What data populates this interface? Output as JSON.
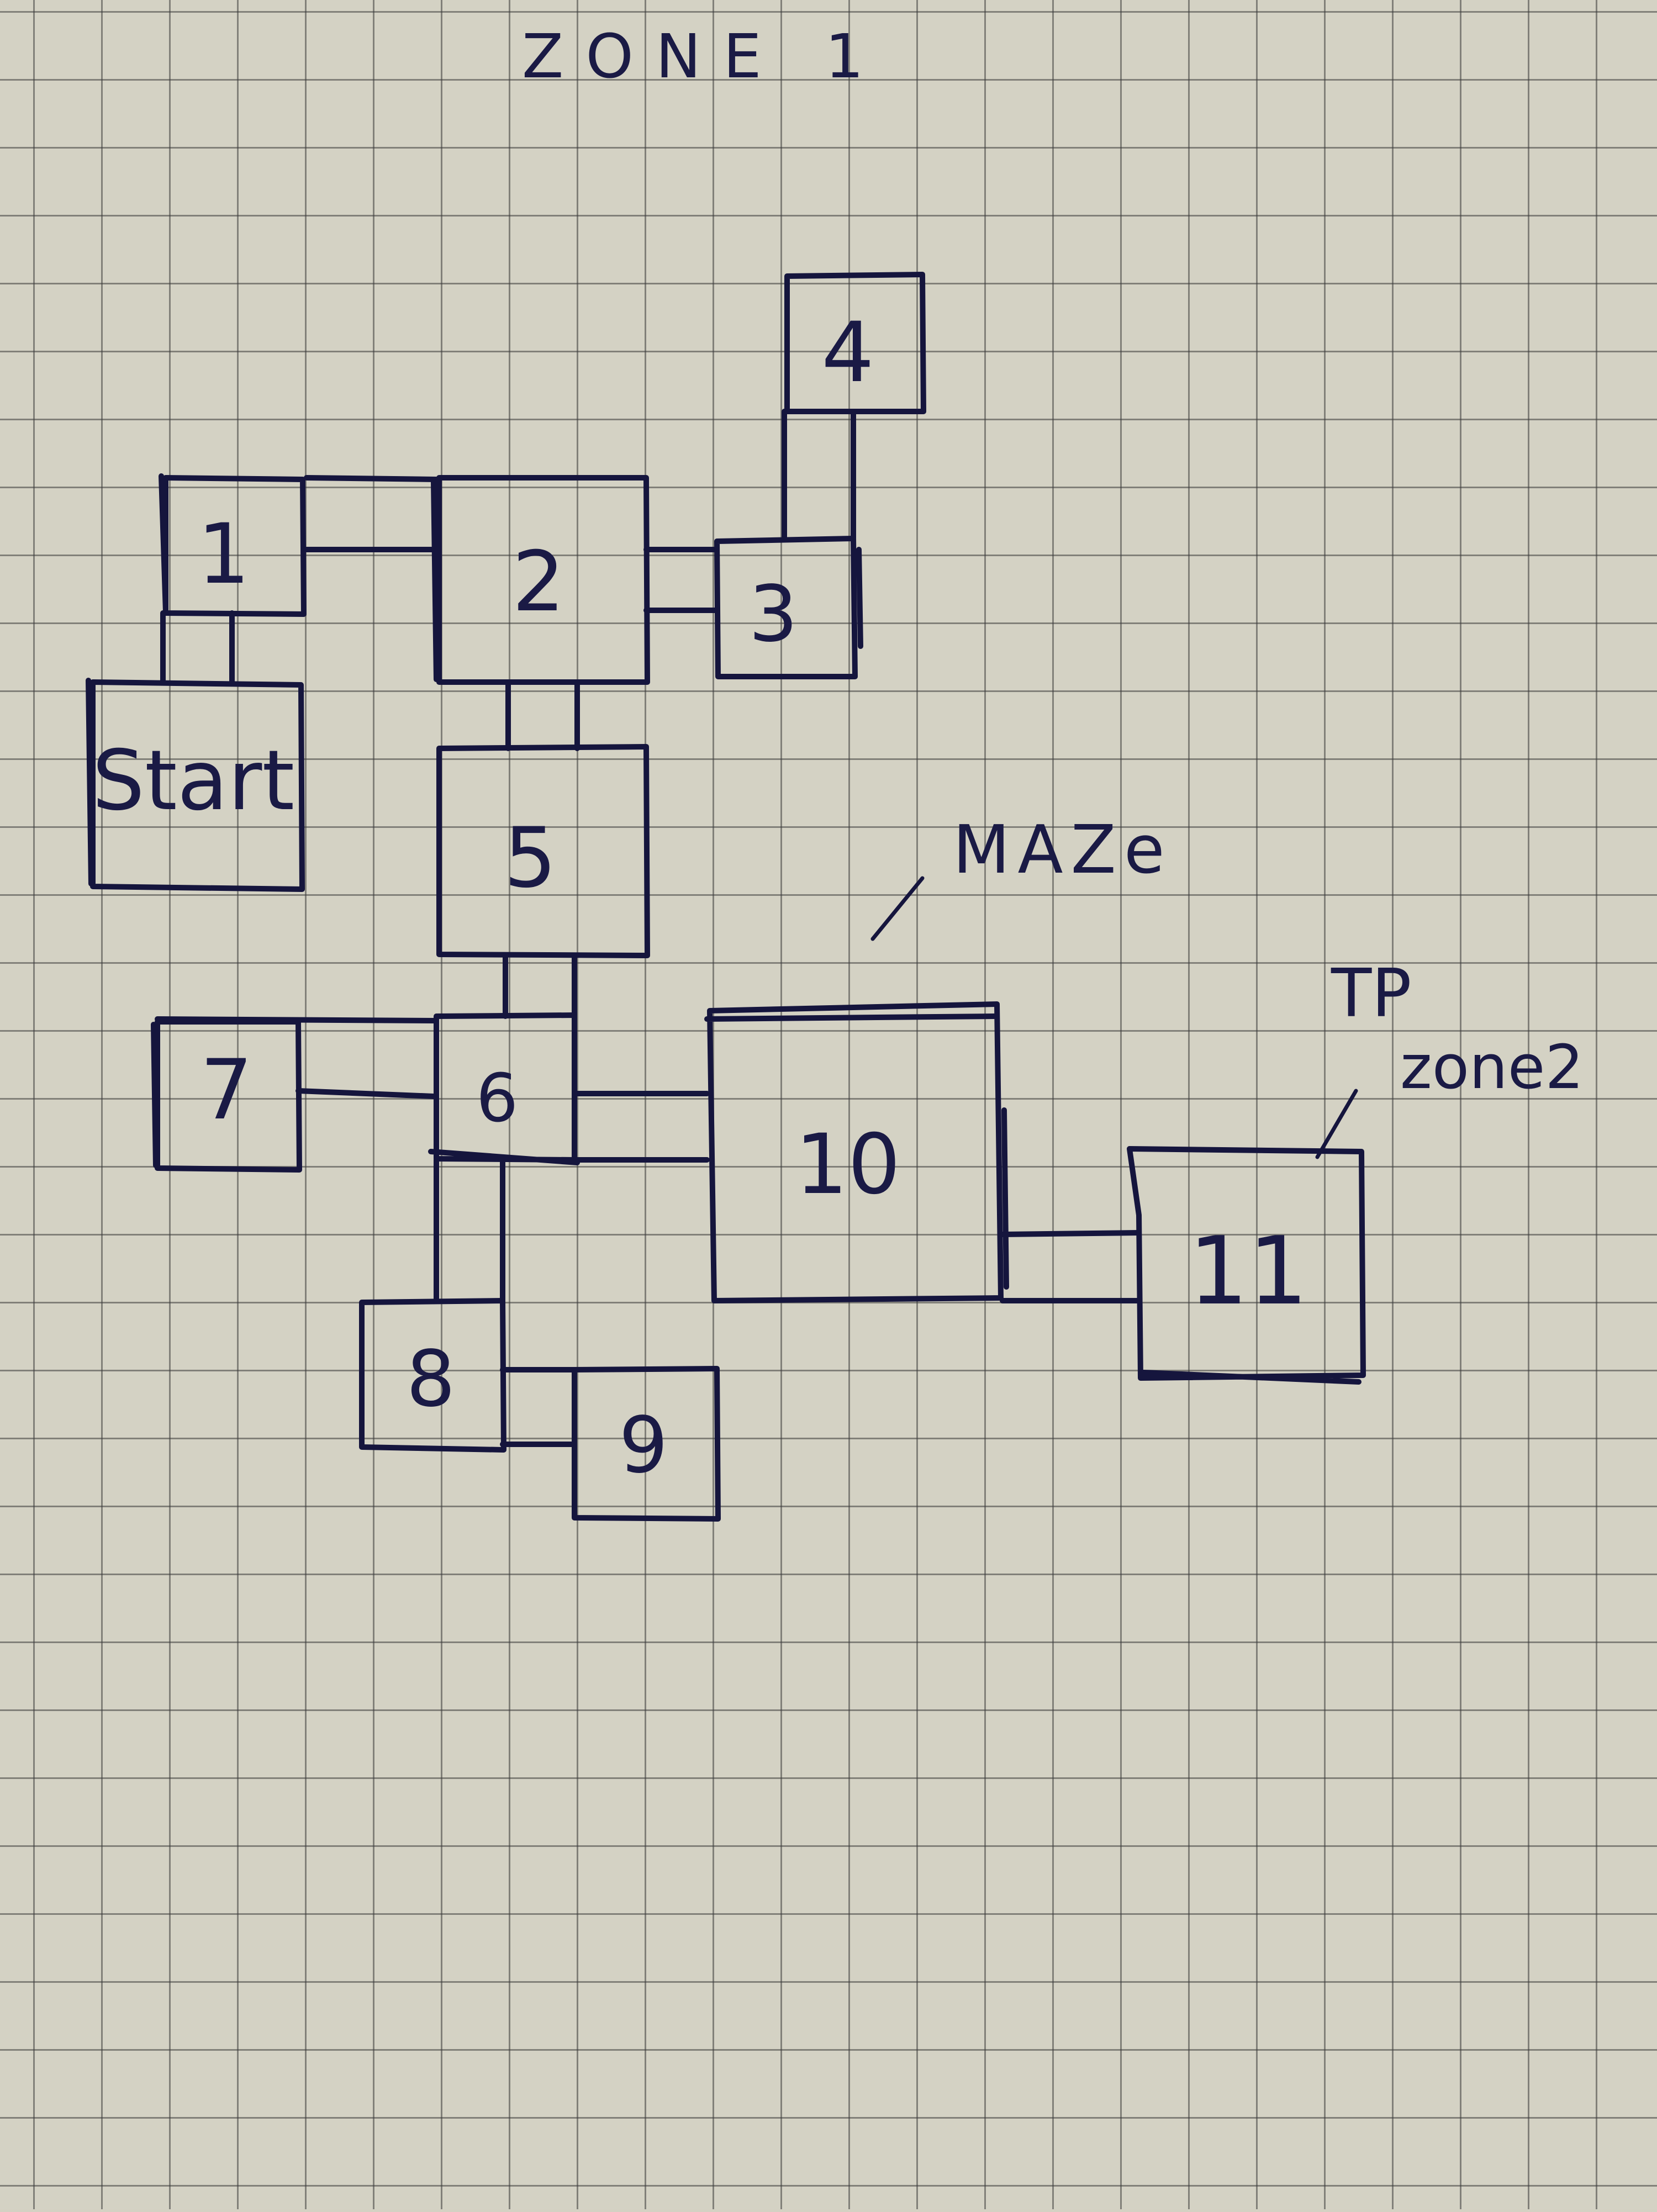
{
  "title": "ZONE 1",
  "rooms": {
    "start": "Start",
    "r1": "1",
    "r2": "2",
    "r3": "3",
    "r4": "4",
    "r5": "5",
    "r6": "6",
    "r7": "7",
    "r8": "8",
    "r9": "9",
    "r10": "10",
    "r11": "11"
  },
  "annotations": {
    "maze": "MAZe",
    "tp": "TP",
    "zone2": "zone2"
  },
  "colors": {
    "ink": "#15153d",
    "paper": "#d4d2c4"
  }
}
